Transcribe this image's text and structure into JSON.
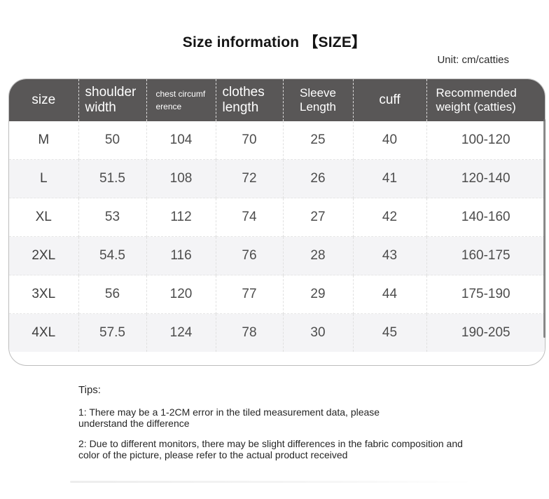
{
  "page": {
    "title": "Size information 【SIZE】",
    "unit_note": "Unit: cm/catties"
  },
  "size_table": {
    "columns": [
      "size",
      "shoulder width",
      "chest circumference",
      "clothes length",
      "Sleeve Length",
      "cuff",
      "Recommended weight (catties)"
    ],
    "rows": [
      [
        "M",
        "50",
        "104",
        "70",
        "25",
        "40",
        "100-120"
      ],
      [
        "L",
        "51.5",
        "108",
        "72",
        "26",
        "41",
        "120-140"
      ],
      [
        "XL",
        "53",
        "112",
        "74",
        "27",
        "42",
        "140-160"
      ],
      [
        "2XL",
        "54.5",
        "116",
        "76",
        "28",
        "43",
        "160-175"
      ],
      [
        "3XL",
        "56",
        "120",
        "77",
        "29",
        "44",
        "175-190"
      ],
      [
        "4XL",
        "57.5",
        "124",
        "78",
        "30",
        "45",
        "190-205"
      ]
    ]
  },
  "tips": {
    "heading": "Tips:",
    "items": [
      "1: There may be a 1-2CM error in the tiled measurement data, please\nunderstand the difference",
      "2: Due to different monitors, there may be slight differences in the fabric composition and\ncolor of the picture, please refer to the actual product received"
    ]
  },
  "colors": {
    "header_bg": "#595757",
    "header_text": "#ffffff",
    "body_text": "#4d4d4d",
    "stripe_bg": "#f4f4f6",
    "table_border": "#bdbdbd"
  }
}
